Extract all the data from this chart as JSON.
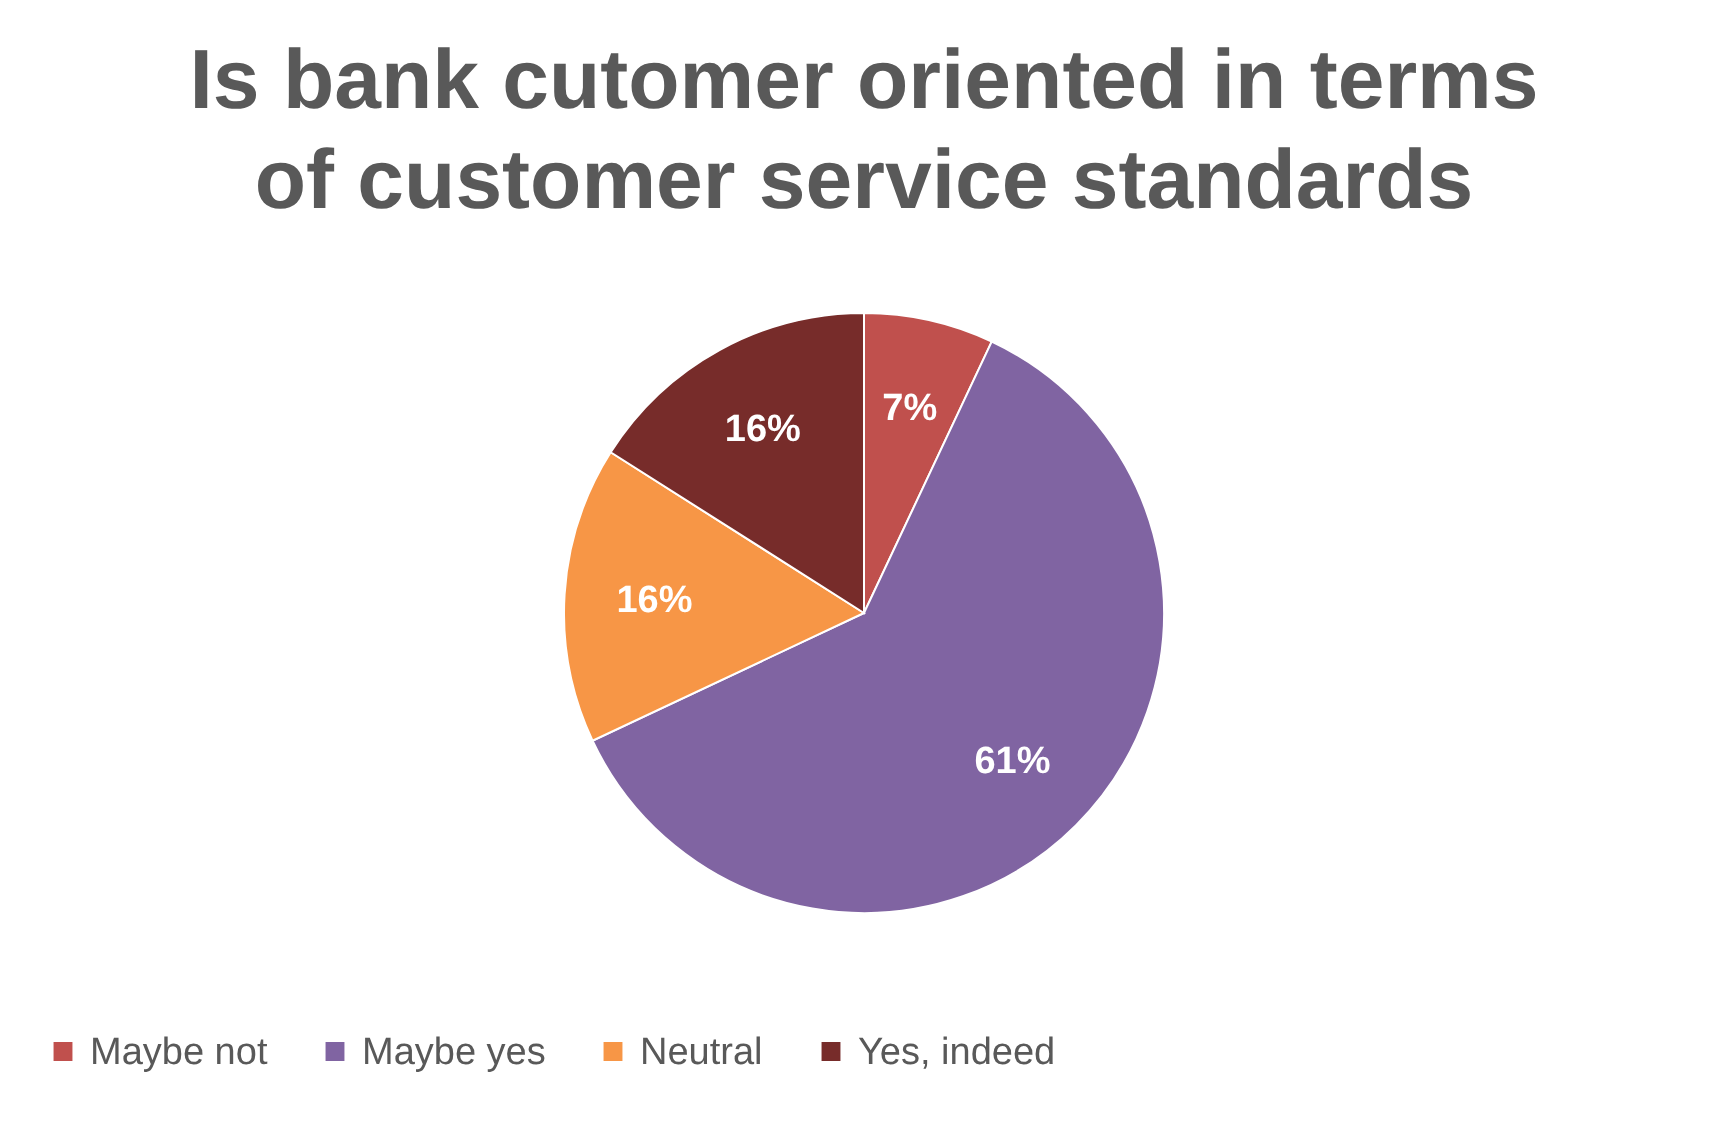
{
  "chart_data": {
    "type": "pie",
    "title": "Is bank cutomer oriented in terms of customer service standards",
    "categories": [
      "Maybe not",
      "Maybe yes",
      "Neutral",
      "Yes, indeed"
    ],
    "values": [
      7,
      61,
      16,
      16
    ],
    "colors": [
      "#c0504d",
      "#8064a2",
      "#f79646",
      "#772c2a"
    ],
    "value_labels": [
      "7%",
      "61%",
      "16%",
      "16%"
    ],
    "legend": "bottom"
  }
}
